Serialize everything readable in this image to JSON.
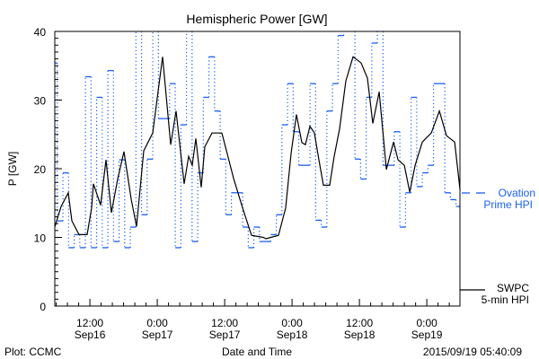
{
  "chart_data": {
    "type": "line",
    "title": "Hemispheric Power [GW]",
    "xlabel": "Date and Time",
    "ylabel": "P [GW]",
    "ylim": [
      0,
      40
    ],
    "xlim_hours_from_sep16_0000": [
      5.75,
      77.9
    ],
    "y_ticks": [
      0,
      10,
      20,
      30,
      40
    ],
    "x_ticks": [
      {
        "hour": 12,
        "time": "12:00",
        "date": "Sep16"
      },
      {
        "hour": 24,
        "time": "0:00",
        "date": "Sep17"
      },
      {
        "hour": 36,
        "time": "12:00",
        "date": "Sep17"
      },
      {
        "hour": 48,
        "time": "0:00",
        "date": "Sep18"
      },
      {
        "hour": 60,
        "time": "12:00",
        "date": "Sep18"
      },
      {
        "hour": 72,
        "time": "0:00",
        "date": "Sep19"
      }
    ],
    "grid": false,
    "legend": [
      {
        "name_line1": "Ovation",
        "name_line2": "Prime HPI",
        "style": "dashed-step",
        "color": "#1a5ff0"
      },
      {
        "name_line1": "SWPC",
        "name_line2": "5-min HPI",
        "style": "solid",
        "color": "#000000"
      }
    ],
    "series": [
      {
        "name": "SWPC 5-min HPI",
        "x_hours": [
          5.75,
          6.87,
          8.15,
          8.79,
          10.07,
          11.51,
          12.31,
          12.63,
          13.91,
          14.87,
          15.83,
          16.95,
          18.07,
          19.35,
          20.31,
          21.59,
          23.19,
          24.95,
          26.39,
          27.35,
          28.79,
          29.59,
          30.23,
          30.87,
          31.83,
          32.47,
          33.75,
          35.51,
          37.59,
          39.19,
          40.79,
          42.87,
          43.35,
          45.59,
          46.87,
          47.83,
          48.79,
          49.75,
          50.39,
          51.19,
          51.99,
          52.79,
          53.59,
          54.71,
          55.51,
          56.47,
          57.59,
          58.87,
          60.31,
          61.43,
          62.39,
          63.51,
          64.79,
          66.07,
          66.87,
          67.99,
          68.95,
          69.91,
          71.19,
          72.79,
          74.23,
          75.51,
          76.95,
          77.91
        ],
        "values": [
          11.5,
          14.5,
          16.5,
          12.4,
          10.4,
          10.4,
          14.3,
          17.8,
          14.7,
          21.3,
          13.6,
          18.5,
          22.5,
          15.6,
          11.6,
          22.6,
          25.2,
          36.3,
          23.5,
          28.4,
          17.8,
          21.8,
          20.5,
          24.4,
          17.3,
          23.2,
          25.2,
          25.2,
          18.6,
          14.3,
          10.3,
          10.0,
          9.8,
          10.3,
          14.3,
          22.2,
          27.9,
          23.8,
          23.5,
          26.2,
          25.2,
          21.3,
          17.6,
          17.6,
          21.8,
          25.8,
          32.8,
          36.3,
          35.4,
          33.2,
          26.6,
          31.2,
          19.9,
          23.9,
          21.3,
          20.5,
          16.6,
          20.5,
          23.9,
          25.2,
          28.4,
          24.8,
          23.9,
          16.9
        ]
      },
      {
        "name": "Ovation Prime HPI",
        "step_start_hour": 5.2,
        "step_hours": 1,
        "values": [
          35.4,
          12.4,
          19.4,
          8.5,
          10.4,
          8.5,
          33.4,
          8.5,
          30.4,
          8.5,
          34.3,
          9.4,
          21.3,
          8.5,
          11.5,
          42,
          13.3,
          21.4,
          41,
          27.3,
          27.3,
          32.4,
          8.5,
          26.4,
          42,
          9.4,
          19.4,
          30.4,
          36.3,
          28.4,
          21.4,
          13.3,
          16.5,
          16.5,
          11.5,
          8.5,
          11.5,
          9.4,
          9.4,
          10.4,
          13.3,
          26.4,
          32.4,
          25.4,
          20.5,
          20.5,
          32.4,
          12.5,
          11.5,
          28.4,
          32.4,
          39.4,
          42,
          42,
          21.4,
          18.5,
          30.4,
          38.3,
          42,
          20.5,
          20.5,
          25.4,
          11.5,
          16.5,
          30.4,
          17.4,
          19.4,
          20.5,
          32.4,
          32.4,
          16.5,
          15.5,
          14.5,
          42
        ]
      }
    ]
  },
  "footer": {
    "credit": "Plot: CCMC",
    "timestamp": "2015/09/19 05:40:09"
  }
}
